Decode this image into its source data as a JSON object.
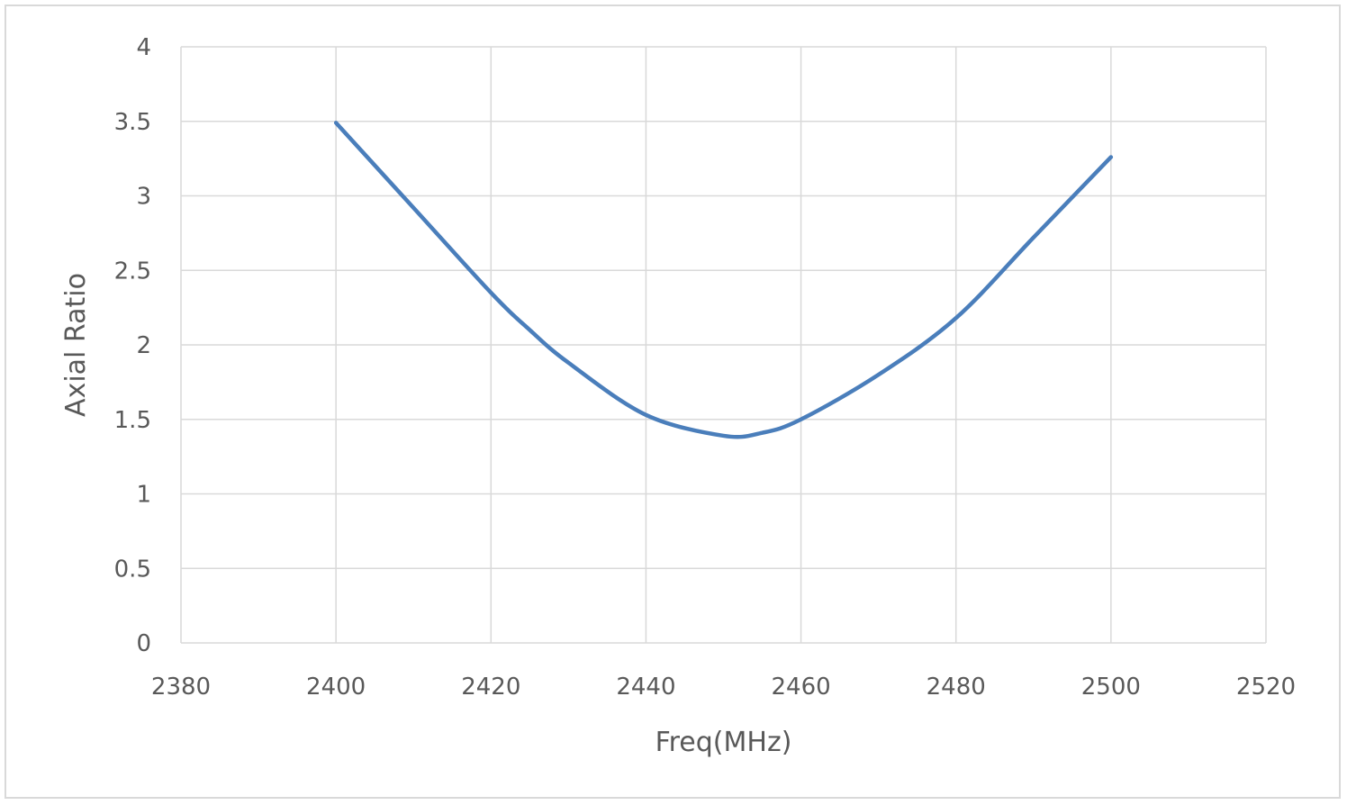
{
  "chart_data": {
    "type": "line",
    "title": "",
    "xlabel": "Freq(MHz)",
    "ylabel": "Axial Ratio",
    "xlim": [
      2380,
      2520
    ],
    "ylim": [
      0,
      4
    ],
    "xticks": [
      2380,
      2400,
      2420,
      2440,
      2460,
      2480,
      2500,
      2520
    ],
    "yticks": [
      0,
      0.5,
      1,
      1.5,
      2,
      2.5,
      3,
      3.5,
      4
    ],
    "grid": true,
    "legend": "none",
    "series": [
      {
        "color": "#4a7ebb",
        "x": [
          2400,
          2410,
          2420,
          2425,
          2430,
          2440,
          2450,
          2455,
          2460,
          2470,
          2480,
          2490,
          2500
        ],
        "y": [
          3.49,
          2.92,
          2.35,
          2.1,
          1.88,
          1.53,
          1.39,
          1.41,
          1.5,
          1.8,
          2.18,
          2.72,
          3.26
        ]
      }
    ]
  }
}
